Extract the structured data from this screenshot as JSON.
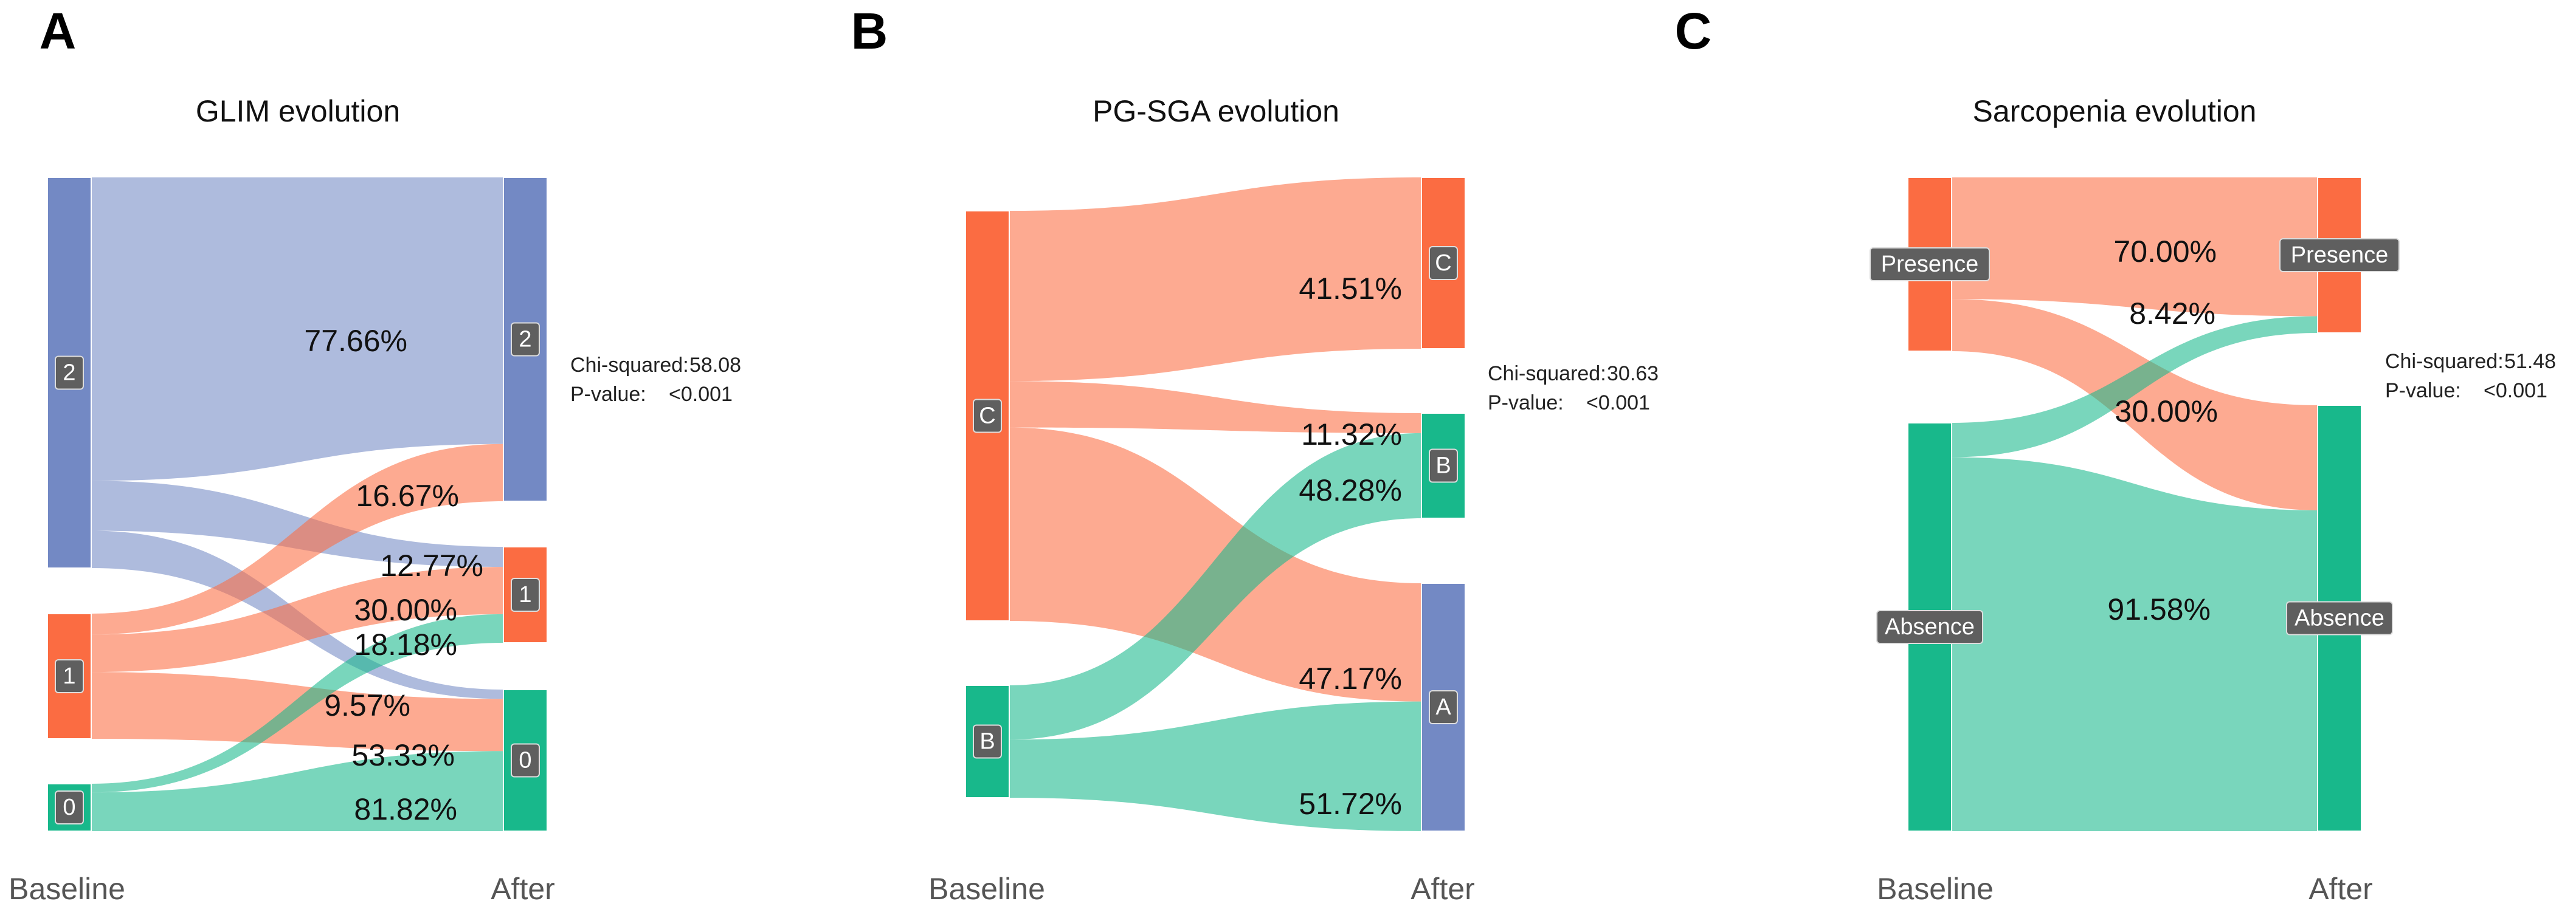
{
  "chart_data": [
    {
      "type": "sankey",
      "panel": "A",
      "title": "GLIM evolution",
      "xlabel_left": "Baseline",
      "xlabel_right": "After",
      "stats": {
        "chi_label": "Chi-squared:",
        "chi_value": "58.08",
        "p_label": "P-value:",
        "p_value": "<0.001"
      },
      "left_nodes": [
        {
          "id": "2",
          "label": "2",
          "color": "#7389c4"
        },
        {
          "id": "1",
          "label": "1",
          "color": "#fb6c42"
        },
        {
          "id": "0",
          "label": "0",
          "color": "#18b88b"
        }
      ],
      "right_nodes": [
        {
          "id": "2",
          "label": "2",
          "color": "#7389c4"
        },
        {
          "id": "1",
          "label": "1",
          "color": "#fb6c42"
        },
        {
          "id": "0",
          "label": "0",
          "color": "#18b88b"
        }
      ],
      "flows": [
        {
          "source": "2",
          "target": "2",
          "value": 77.66,
          "label": "77.66%"
        },
        {
          "source": "2",
          "target": "1",
          "value": 12.77,
          "label": "12.77%"
        },
        {
          "source": "2",
          "target": "0",
          "value": 9.57,
          "label": "9.57%"
        },
        {
          "source": "1",
          "target": "2",
          "value": 16.67,
          "label": "16.67%"
        },
        {
          "source": "1",
          "target": "1",
          "value": 30.0,
          "label": "30.00%"
        },
        {
          "source": "1",
          "target": "0",
          "value": 53.33,
          "label": "53.33%"
        },
        {
          "source": "0",
          "target": "1",
          "value": 18.18,
          "label": "18.18%"
        },
        {
          "source": "0",
          "target": "0",
          "value": 81.82,
          "label": "81.82%"
        }
      ]
    },
    {
      "type": "sankey",
      "panel": "B",
      "title": "PG-SGA evolution",
      "xlabel_left": "Baseline",
      "xlabel_right": "After",
      "stats": {
        "chi_label": "Chi-squared:",
        "chi_value": "30.63",
        "p_label": "P-value:",
        "p_value": "<0.001"
      },
      "left_nodes": [
        {
          "id": "C",
          "label": "C",
          "color": "#fb6c42"
        },
        {
          "id": "B",
          "label": "B",
          "color": "#18b88b"
        }
      ],
      "right_nodes": [
        {
          "id": "C",
          "label": "C",
          "color": "#fb6c42"
        },
        {
          "id": "B",
          "label": "B",
          "color": "#18b88b"
        },
        {
          "id": "A",
          "label": "A",
          "color": "#7389c4"
        }
      ],
      "flows": [
        {
          "source": "C",
          "target": "C",
          "value": 41.51,
          "label": "41.51%"
        },
        {
          "source": "C",
          "target": "B",
          "value": 11.32,
          "label": "11.32%"
        },
        {
          "source": "C",
          "target": "A",
          "value": 47.17,
          "label": "47.17%"
        },
        {
          "source": "B",
          "target": "B",
          "value": 48.28,
          "label": "48.28%"
        },
        {
          "source": "B",
          "target": "A",
          "value": 51.72,
          "label": "51.72%"
        }
      ]
    },
    {
      "type": "sankey",
      "panel": "C",
      "title": "Sarcopenia evolution",
      "xlabel_left": "Baseline",
      "xlabel_right": "After",
      "stats": {
        "chi_label": "Chi-squared:",
        "chi_value": "51.48",
        "p_label": "P-value:",
        "p_value": "<0.001"
      },
      "left_nodes": [
        {
          "id": "Presence",
          "label": "Presence",
          "color": "#fb6c42"
        },
        {
          "id": "Absence",
          "label": "Absence",
          "color": "#18b88b"
        }
      ],
      "right_nodes": [
        {
          "id": "Presence",
          "label": "Presence",
          "color": "#fb6c42"
        },
        {
          "id": "Absence",
          "label": "Absence",
          "color": "#18b88b"
        }
      ],
      "flows": [
        {
          "source": "Presence",
          "target": "Presence",
          "value": 70.0,
          "label": "70.00%"
        },
        {
          "source": "Presence",
          "target": "Absence",
          "value": 30.0,
          "label": "30.00%"
        },
        {
          "source": "Absence",
          "target": "Presence",
          "value": 8.42,
          "label": "8.42%"
        },
        {
          "source": "Absence",
          "target": "Absence",
          "value": 91.58,
          "label": "91.58%"
        }
      ]
    }
  ]
}
